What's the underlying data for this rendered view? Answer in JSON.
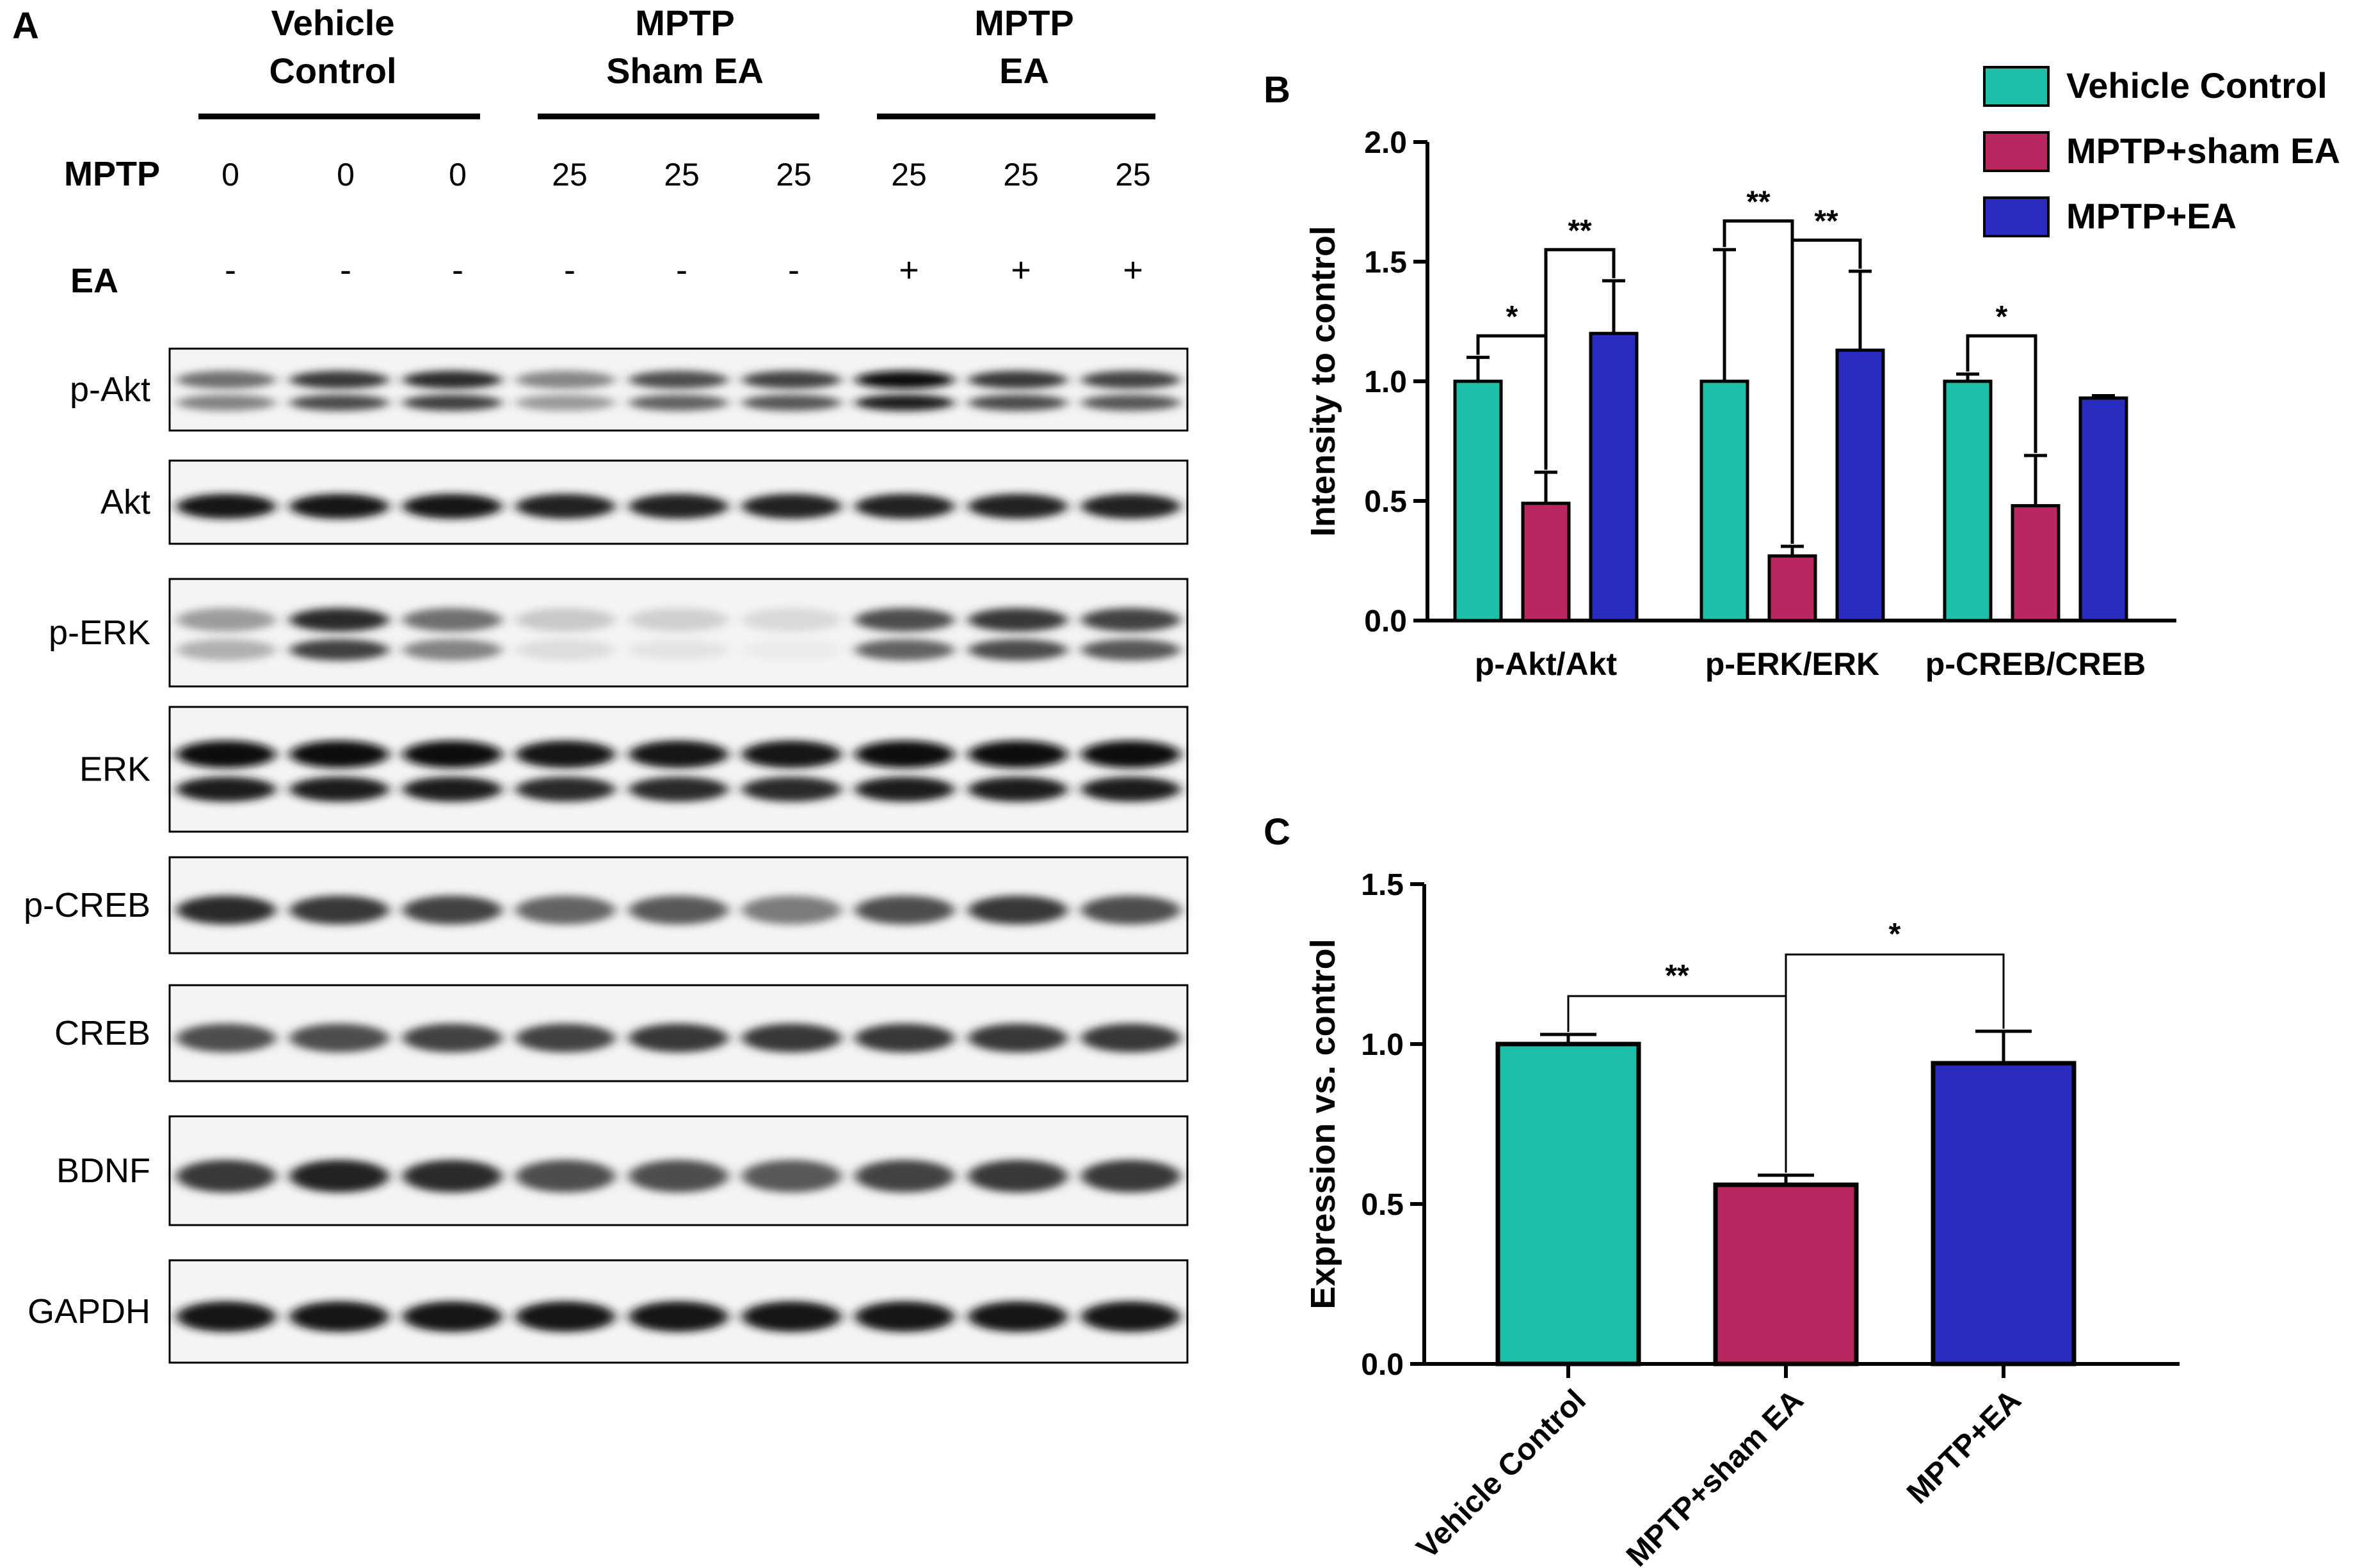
{
  "panels": {
    "a": "A",
    "b": "B",
    "c": "C"
  },
  "western_blot": {
    "groups": [
      "Vehicle Control",
      "MPTP Sham EA",
      "MPTP EA"
    ],
    "group_lines": [
      [
        "Vehicle",
        "Control"
      ],
      [
        "MPTP",
        "Sham EA"
      ],
      [
        "MPTP",
        "EA"
      ]
    ],
    "row_labels": {
      "mptp": "MPTP",
      "ea": "EA"
    },
    "mptp_doses": [
      "0",
      "0",
      "0",
      "25",
      "25",
      "25",
      "25",
      "25",
      "25"
    ],
    "ea_signs": [
      "-",
      "-",
      "-",
      "-",
      "-",
      "-",
      "+",
      "+",
      "+"
    ],
    "blots": [
      {
        "label": "p-Akt",
        "intensity": [
          0.55,
          0.8,
          0.85,
          0.45,
          0.7,
          0.75,
          1.0,
          0.8,
          0.75
        ],
        "bands": 2
      },
      {
        "label": "Akt",
        "intensity": [
          0.95,
          0.95,
          0.95,
          0.9,
          0.9,
          0.9,
          0.9,
          0.9,
          0.9
        ],
        "bands": 1
      },
      {
        "label": "p-ERK",
        "intensity": [
          0.35,
          0.85,
          0.55,
          0.15,
          0.12,
          0.08,
          0.7,
          0.8,
          0.75
        ],
        "bands": 2
      },
      {
        "label": "ERK",
        "intensity": [
          1.0,
          1.0,
          1.0,
          0.95,
          0.95,
          0.95,
          1.0,
          1.0,
          1.0
        ],
        "bands": 2
      },
      {
        "label": "p-CREB",
        "intensity": [
          0.85,
          0.8,
          0.75,
          0.6,
          0.65,
          0.5,
          0.7,
          0.8,
          0.7
        ],
        "bands": 1
      },
      {
        "label": "CREB",
        "intensity": [
          0.7,
          0.7,
          0.75,
          0.75,
          0.8,
          0.8,
          0.8,
          0.8,
          0.8
        ],
        "bands": 1
      },
      {
        "label": "BDNF",
        "intensity": [
          0.8,
          0.9,
          0.85,
          0.7,
          0.7,
          0.65,
          0.75,
          0.8,
          0.8
        ],
        "bands": 1
      },
      {
        "label": "GAPDH",
        "intensity": [
          0.95,
          0.95,
          0.95,
          0.95,
          0.95,
          0.95,
          0.95,
          0.95,
          0.95
        ],
        "bands": 1
      }
    ]
  },
  "colors": {
    "vehicle_control": "#1dbfa8",
    "mptp_sham_ea": "#b8275f",
    "mptp_ea": "#2a2bbf"
  },
  "chart_data": [
    {
      "type": "bar",
      "panel": "B",
      "categories": [
        "p-Akt/Akt",
        "p-ERK/ERK",
        "p-CREB/CREB"
      ],
      "ylabel": "Intensity to control",
      "ylim": [
        0,
        2.0
      ],
      "yticks": [
        "0.0",
        "0.5",
        "1.0",
        "1.5",
        "2.0"
      ],
      "legend": [
        "Vehicle Control",
        "MPTP+sham EA",
        "MPTP+EA"
      ],
      "legend_position": "top-right",
      "series": [
        {
          "name": "Vehicle Control",
          "values": [
            1.0,
            1.0,
            1.0
          ],
          "errors": [
            0.1,
            0.55,
            0.03
          ]
        },
        {
          "name": "MPTP+sham EA",
          "values": [
            0.49,
            0.27,
            0.48
          ],
          "errors": [
            0.13,
            0.04,
            0.21
          ]
        },
        {
          "name": "MPTP+EA",
          "values": [
            1.2,
            1.13,
            0.93
          ],
          "errors": [
            0.22,
            0.33,
            0.01
          ]
        }
      ],
      "significance": [
        {
          "category": 0,
          "from": 0,
          "to": 1,
          "label": "*",
          "level": 1.19
        },
        {
          "category": 0,
          "from": 1,
          "to": 2,
          "label": "**",
          "level": 1.55
        },
        {
          "category": 1,
          "from": 0,
          "to": 1,
          "label": "**",
          "level": 1.67
        },
        {
          "category": 1,
          "from": 1,
          "to": 2,
          "label": "**",
          "level": 1.59
        },
        {
          "category": 2,
          "from": 0,
          "to": 1,
          "label": "*",
          "level": 1.19
        }
      ]
    },
    {
      "type": "bar",
      "panel": "C",
      "categories": [
        "Vehicle Control",
        "MPTP+sham EA",
        "MPTP+EA"
      ],
      "ylabel": "Expression vs. control",
      "ylim": [
        0,
        1.5
      ],
      "yticks": [
        "0.0",
        "0.5",
        "1.0",
        "1.5"
      ],
      "values": [
        1.0,
        0.56,
        0.94
      ],
      "errors": [
        0.03,
        0.03,
        0.1
      ],
      "significance": [
        {
          "from": 0,
          "to": 1,
          "label": "**",
          "level": 1.15
        },
        {
          "from": 1,
          "to": 2,
          "label": "*",
          "level": 1.28
        }
      ]
    }
  ]
}
